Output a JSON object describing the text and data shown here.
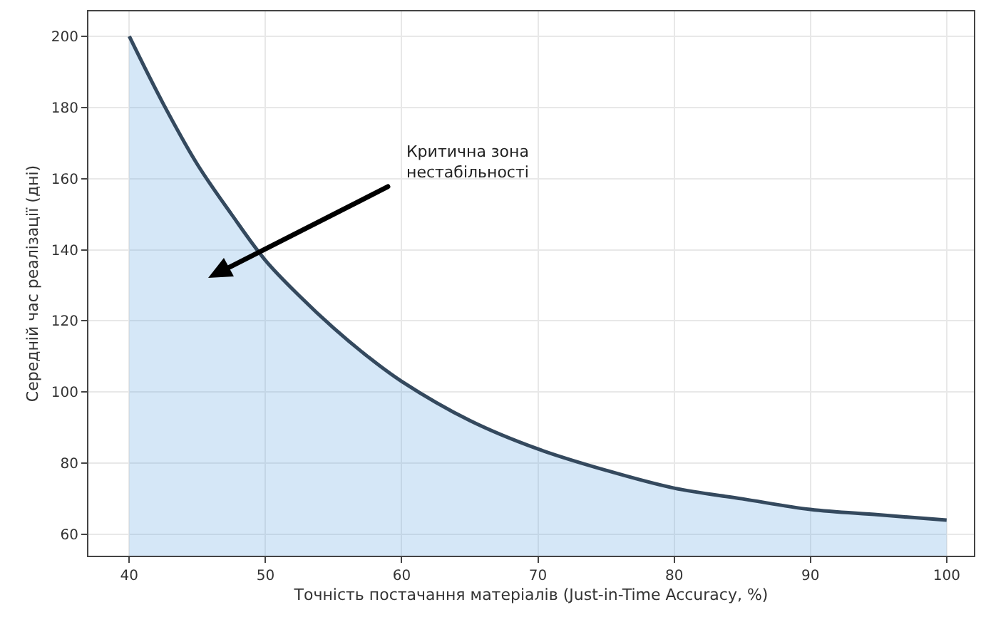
{
  "chart_data": {
    "type": "area",
    "xlabel": "Точність постачання матеріалів (Just-in-Time Accuracy, %)",
    "ylabel": "Середній час реалізації (дні)",
    "x": [
      40,
      42.5,
      45,
      47.5,
      50,
      52.5,
      55,
      57.5,
      60,
      65,
      70,
      75,
      80,
      85,
      90,
      95,
      100
    ],
    "series": [
      {
        "color": "#34495e",
        "values": [
          200,
          181,
          164,
          150,
          137,
          127,
          118,
          110,
          103,
          92,
          84,
          78,
          73,
          70,
          67,
          65.5,
          64
        ]
      }
    ],
    "xlim": [
      37,
      102
    ],
    "ylim": [
      54,
      207
    ],
    "xticks": [
      40,
      50,
      60,
      70,
      80,
      90,
      100
    ],
    "yticks": [
      60,
      80,
      100,
      120,
      140,
      160,
      180,
      200
    ],
    "grid": true,
    "annotations": [
      "Критична зона\nнестабільності"
    ]
  }
}
